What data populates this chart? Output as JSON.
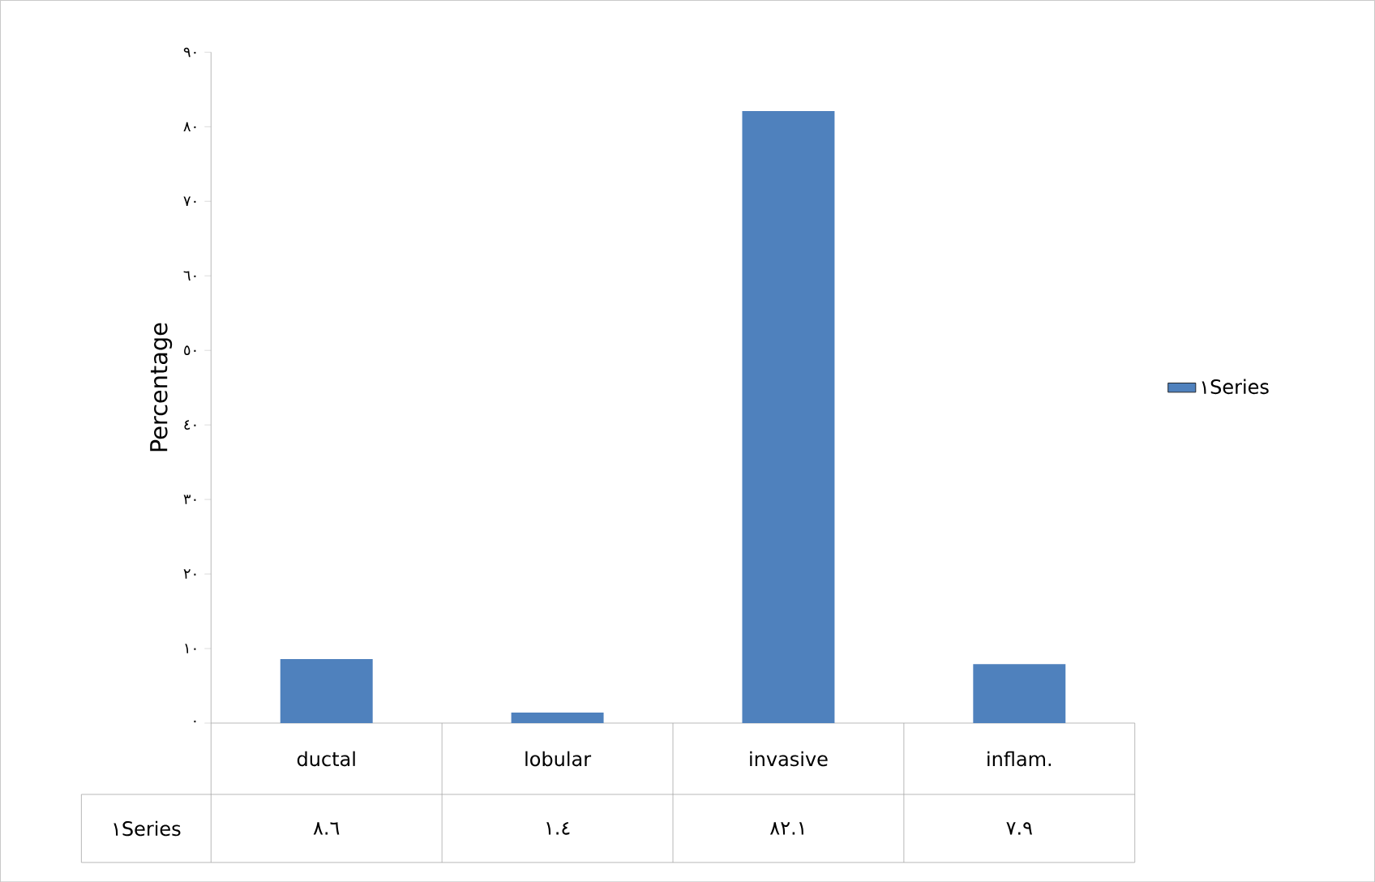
{
  "chart_data": {
    "type": "bar",
    "ylabel": "Percentage",
    "categories": [
      "ductal",
      "lobular",
      "invasive",
      "inflam."
    ],
    "series": [
      {
        "name": "١Series",
        "color": "#4f81bd",
        "values": [
          8.6,
          1.4,
          82.1,
          7.9
        ],
        "value_labels": [
          "٨.٦",
          "١.٤",
          "٨٢.١",
          "٧.٩"
        ]
      }
    ],
    "ylim": [
      0,
      90
    ],
    "yticks": [
      {
        "value": 0,
        "label": "٠"
      },
      {
        "value": 10,
        "label": "١٠"
      },
      {
        "value": 20,
        "label": "٢٠"
      },
      {
        "value": 30,
        "label": "٣٠"
      },
      {
        "value": 40,
        "label": "٤٠"
      },
      {
        "value": 50,
        "label": "٥٠"
      },
      {
        "value": 60,
        "label": "٦٠"
      },
      {
        "value": 70,
        "label": "٧٠"
      },
      {
        "value": 80,
        "label": "٨٠"
      },
      {
        "value": 90,
        "label": "٩٠"
      }
    ],
    "legend": "right",
    "grid": false
  }
}
